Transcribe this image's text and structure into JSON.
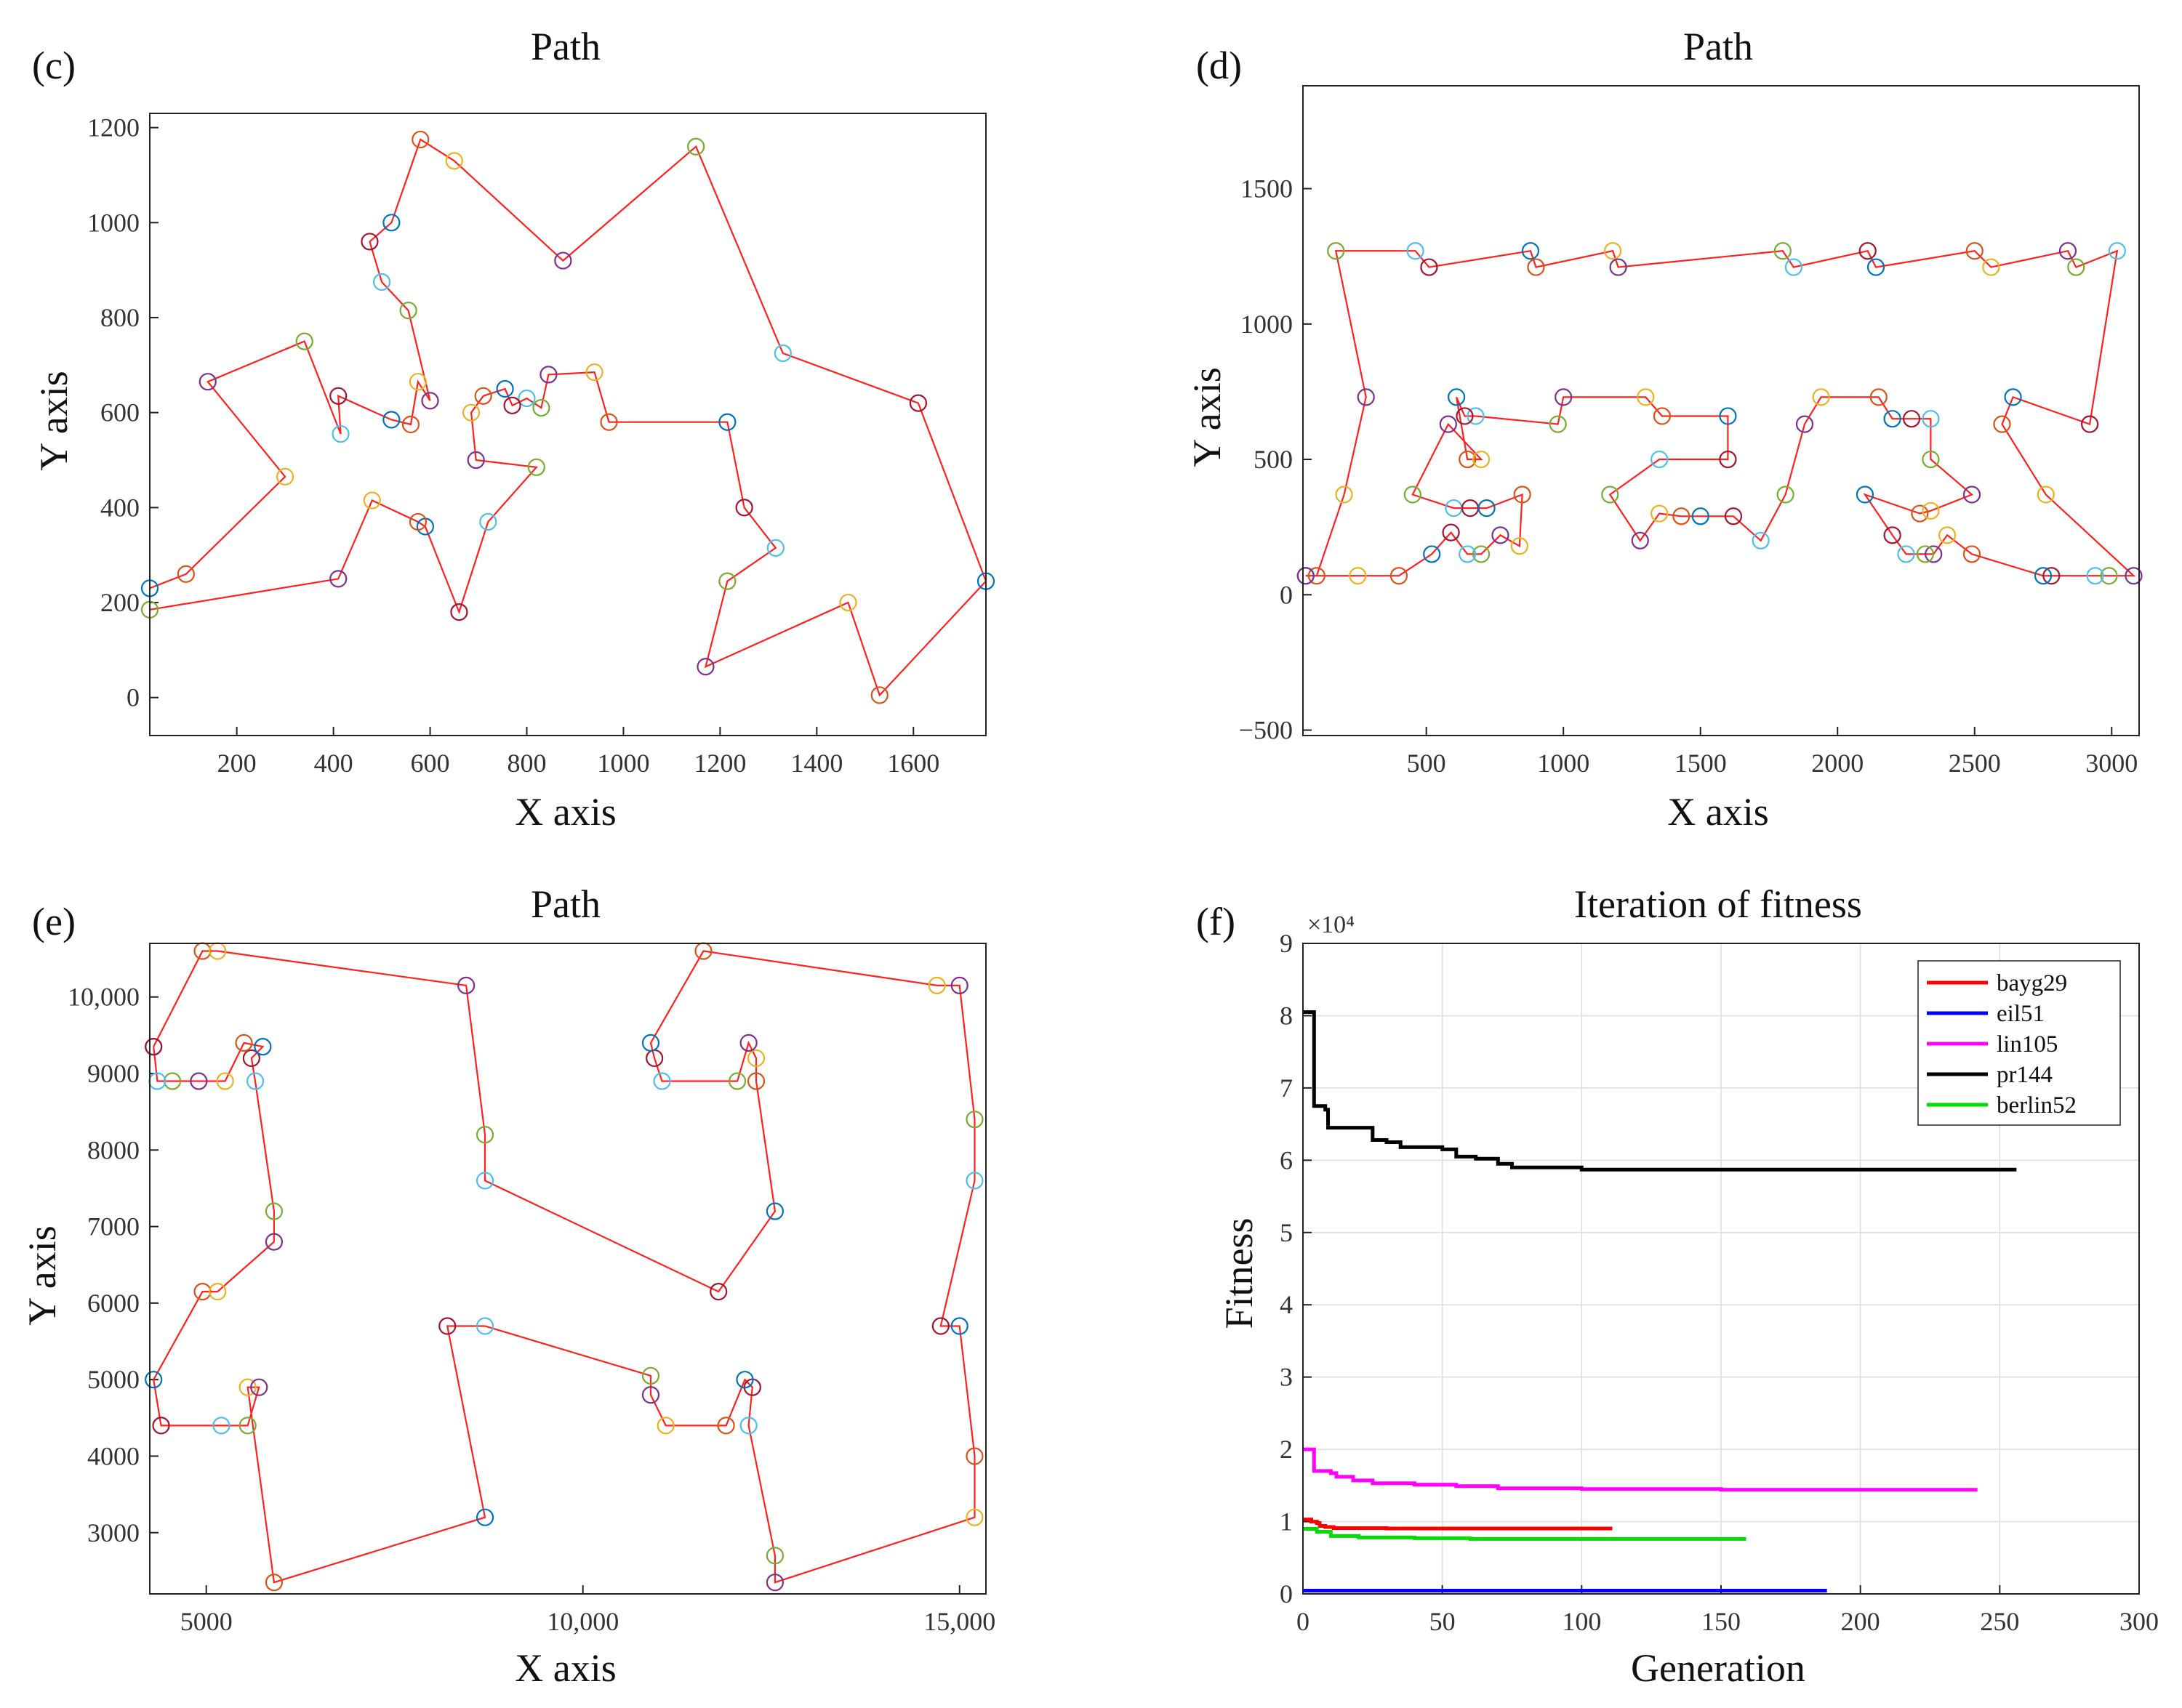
{
  "chart_data": [
    {
      "id": "c",
      "panel_label": "(c)",
      "type": "scatter",
      "title": "Path",
      "xlabel": "X axis",
      "ylabel": "Y axis",
      "xlim": [
        20,
        1750
      ],
      "ylim": [
        -80,
        1230
      ],
      "xticks": [
        200,
        400,
        600,
        800,
        1000,
        1200,
        1400,
        1600
      ],
      "xtick_labels": [
        "200",
        "400",
        "600",
        "800",
        "1000",
        "1200",
        "1400",
        "1600"
      ],
      "yticks": [
        0,
        200,
        400,
        600,
        800,
        1000,
        1200
      ],
      "ytick_labels": [
        "0",
        "200",
        "400",
        "600",
        "800",
        "1000",
        "1200"
      ],
      "path_color": "#ff2020",
      "path": [
        [
          20,
          230
        ],
        [
          95,
          260
        ],
        [
          300,
          465
        ],
        [
          140,
          665
        ],
        [
          340,
          750
        ],
        [
          415,
          555
        ],
        [
          410,
          635
        ],
        [
          520,
          585
        ],
        [
          560,
          575
        ],
        [
          575,
          665
        ],
        [
          600,
          625
        ],
        [
          555,
          815
        ],
        [
          500,
          875
        ],
        [
          475,
          960
        ],
        [
          520,
          1000
        ],
        [
          580,
          1175
        ],
        [
          650,
          1130
        ],
        [
          875,
          920
        ],
        [
          1150,
          1160
        ],
        [
          1330,
          725
        ],
        [
          1610,
          620
        ],
        [
          1750,
          245
        ],
        [
          1530,
          5
        ],
        [
          1465,
          200
        ],
        [
          1170,
          65
        ],
        [
          1215,
          245
        ],
        [
          1315,
          315
        ],
        [
          1250,
          400
        ],
        [
          1215,
          580
        ],
        [
          970,
          580
        ],
        [
          940,
          685
        ],
        [
          845,
          680
        ],
        [
          830,
          610
        ],
        [
          800,
          630
        ],
        [
          770,
          615
        ],
        [
          755,
          650
        ],
        [
          710,
          635
        ],
        [
          685,
          600
        ],
        [
          695,
          500
        ],
        [
          820,
          485
        ],
        [
          720,
          370
        ],
        [
          660,
          180
        ],
        [
          590,
          360
        ],
        [
          575,
          370
        ],
        [
          480,
          415
        ],
        [
          410,
          250
        ],
        [
          20,
          185
        ]
      ]
    },
    {
      "id": "d",
      "panel_label": "(d)",
      "type": "scatter",
      "title": "Path",
      "xlabel": "X axis",
      "ylabel": "Y axis",
      "xlim": [
        50,
        3100
      ],
      "ylim": [
        -520,
        1880
      ],
      "xticks": [
        500,
        1000,
        1500,
        2000,
        2500,
        3000
      ],
      "xtick_labels": [
        "500",
        "1000",
        "1500",
        "2000",
        "2500",
        "3000"
      ],
      "yticks": [
        -500,
        0,
        500,
        1000,
        1500
      ],
      "ytick_labels": [
        "−500",
        "0",
        "500",
        "1000",
        "1500"
      ],
      "path_color": "#ff2020",
      "path": [
        [
          60,
          70
        ],
        [
          100,
          70
        ],
        [
          200,
          370
        ],
        [
          280,
          730
        ],
        [
          170,
          1270
        ],
        [
          460,
          1270
        ],
        [
          510,
          1210
        ],
        [
          880,
          1270
        ],
        [
          900,
          1210
        ],
        [
          1180,
          1270
        ],
        [
          1200,
          1210
        ],
        [
          1800,
          1270
        ],
        [
          1840,
          1210
        ],
        [
          2110,
          1270
        ],
        [
          2140,
          1210
        ],
        [
          2500,
          1270
        ],
        [
          2560,
          1210
        ],
        [
          2840,
          1270
        ],
        [
          2870,
          1210
        ],
        [
          3020,
          1270
        ],
        [
          2920,
          630
        ],
        [
          2640,
          730
        ],
        [
          2600,
          630
        ],
        [
          2760,
          370
        ],
        [
          3080,
          70
        ],
        [
          2990,
          70
        ],
        [
          2940,
          70
        ],
        [
          2780,
          70
        ],
        [
          2750,
          70
        ],
        [
          2490,
          150
        ],
        [
          2400,
          220
        ],
        [
          2350,
          150
        ],
        [
          2320,
          150
        ],
        [
          2250,
          150
        ],
        [
          2200,
          220
        ],
        [
          2100,
          370
        ],
        [
          2300,
          300
        ],
        [
          2340,
          310
        ],
        [
          2490,
          370
        ],
        [
          2340,
          500
        ],
        [
          2340,
          650
        ],
        [
          2270,
          650
        ],
        [
          2200,
          650
        ],
        [
          2150,
          730
        ],
        [
          1940,
          730
        ],
        [
          1880,
          630
        ],
        [
          1810,
          370
        ],
        [
          1720,
          200
        ],
        [
          1620,
          290
        ],
        [
          1500,
          290
        ],
        [
          1430,
          290
        ],
        [
          1350,
          300
        ],
        [
          1280,
          200
        ],
        [
          1170,
          370
        ],
        [
          1350,
          500
        ],
        [
          1600,
          500
        ],
        [
          1600,
          660
        ],
        [
          1360,
          660
        ],
        [
          1300,
          730
        ],
        [
          1000,
          730
        ],
        [
          980,
          630
        ],
        [
          680,
          660
        ],
        [
          640,
          660
        ],
        [
          610,
          730
        ],
        [
          650,
          500
        ],
        [
          700,
          500
        ],
        [
          580,
          630
        ],
        [
          450,
          370
        ],
        [
          600,
          320
        ],
        [
          660,
          320
        ],
        [
          720,
          320
        ],
        [
          850,
          370
        ],
        [
          840,
          180
        ],
        [
          770,
          220
        ],
        [
          700,
          150
        ],
        [
          650,
          150
        ],
        [
          590,
          230
        ],
        [
          520,
          150
        ],
        [
          400,
          70
        ],
        [
          250,
          70
        ],
        [
          60,
          70
        ]
      ]
    },
    {
      "id": "e",
      "panel_label": "(e)",
      "type": "scatter",
      "title": "Path",
      "xlabel": "X axis",
      "ylabel": "Y axis",
      "xlim": [
        4250,
        15350
      ],
      "ylim": [
        2200,
        10700
      ],
      "xticks": [
        5000,
        10000,
        15000
      ],
      "xtick_labels": [
        "5000",
        "10,000",
        "15,000"
      ],
      "yticks": [
        3000,
        4000,
        5000,
        6000,
        7000,
        8000,
        9000,
        10000
      ],
      "ytick_labels": [
        "3000",
        "4000",
        "5000",
        "6000",
        "7000",
        "8000",
        "9000",
        "10,000"
      ],
      "path_color": "#ff2020",
      "path": [
        [
          4300,
          9350
        ],
        [
          4950,
          10600
        ],
        [
          5150,
          10600
        ],
        [
          8450,
          10150
        ],
        [
          8700,
          8200
        ],
        [
          8700,
          7600
        ],
        [
          11800,
          6150
        ],
        [
          12550,
          7200
        ],
        [
          12300,
          8900
        ],
        [
          12300,
          9200
        ],
        [
          12200,
          9400
        ],
        [
          12050,
          8900
        ],
        [
          11050,
          8900
        ],
        [
          10950,
          9200
        ],
        [
          10900,
          9400
        ],
        [
          11600,
          10600
        ],
        [
          14700,
          10150
        ],
        [
          15000,
          10150
        ],
        [
          15200,
          8400
        ],
        [
          15200,
          7600
        ],
        [
          14750,
          5700
        ],
        [
          15000,
          5700
        ],
        [
          15200,
          4000
        ],
        [
          15200,
          3200
        ],
        [
          12550,
          2350
        ],
        [
          12550,
          2700
        ],
        [
          12200,
          4400
        ],
        [
          12250,
          4900
        ],
        [
          12150,
          5000
        ],
        [
          11900,
          4400
        ],
        [
          11100,
          4400
        ],
        [
          10900,
          4800
        ],
        [
          10900,
          5050
        ],
        [
          8700,
          5700
        ],
        [
          8200,
          5700
        ],
        [
          8700,
          3200
        ],
        [
          5900,
          2350
        ],
        [
          5550,
          4900
        ],
        [
          5700,
          4900
        ],
        [
          5550,
          4400
        ],
        [
          5200,
          4400
        ],
        [
          4400,
          4400
        ],
        [
          4300,
          5000
        ],
        [
          4950,
          6150
        ],
        [
          5150,
          6150
        ],
        [
          5900,
          6800
        ],
        [
          5900,
          7200
        ],
        [
          5650,
          8900
        ],
        [
          5600,
          9200
        ],
        [
          5750,
          9350
        ],
        [
          5500,
          9400
        ],
        [
          5250,
          8900
        ],
        [
          4900,
          8900
        ],
        [
          4550,
          8900
        ],
        [
          4350,
          8900
        ],
        [
          4300,
          9350
        ]
      ]
    },
    {
      "id": "f",
      "panel_label": "(f)",
      "type": "line",
      "title": "Iteration of fitness",
      "xlabel": "Generation",
      "ylabel": "Fitness",
      "exponent_label": "×10⁴",
      "xlim": [
        0,
        300
      ],
      "ylim": [
        0,
        90000
      ],
      "grid": true,
      "legend_position": "top-right",
      "xticks": [
        0,
        50,
        100,
        150,
        200,
        250,
        300
      ],
      "xtick_labels": [
        "0",
        "50",
        "100",
        "150",
        "200",
        "250",
        "300"
      ],
      "yticks": [
        0,
        10000,
        20000,
        30000,
        40000,
        50000,
        60000,
        70000,
        80000,
        90000
      ],
      "ytick_labels": [
        "0",
        "1",
        "2",
        "3",
        "4",
        "5",
        "6",
        "7",
        "8",
        "9"
      ],
      "series": [
        {
          "name": "bayg29",
          "color": "#ff0000",
          "points": [
            [
              0,
              10300
            ],
            [
              2,
              10300
            ],
            [
              3,
              10000
            ],
            [
              5,
              9800
            ],
            [
              6,
              9400
            ],
            [
              8,
              9250
            ],
            [
              11,
              9100
            ],
            [
              20,
              9100
            ],
            [
              30,
              9050
            ],
            [
              111,
              9050
            ]
          ]
        },
        {
          "name": "eil51",
          "color": "#0000ff",
          "points": [
            [
              0,
              450
            ],
            [
              188,
              450
            ]
          ]
        },
        {
          "name": "lin105",
          "color": "#ff00ff",
          "points": [
            [
              0,
              20000
            ],
            [
              3,
              20000
            ],
            [
              4,
              17000
            ],
            [
              10,
              16700
            ],
            [
              12,
              16200
            ],
            [
              18,
              15700
            ],
            [
              25,
              15300
            ],
            [
              40,
              15100
            ],
            [
              55,
              14900
            ],
            [
              70,
              14600
            ],
            [
              100,
              14500
            ],
            [
              150,
              14400
            ],
            [
              242,
              14400
            ]
          ]
        },
        {
          "name": "pr144",
          "color": "#000000",
          "points": [
            [
              0,
              80500
            ],
            [
              3,
              80500
            ],
            [
              4,
              67500
            ],
            [
              8,
              67000
            ],
            [
              9,
              64500
            ],
            [
              25,
              62800
            ],
            [
              30,
              62500
            ],
            [
              35,
              61800
            ],
            [
              50,
              61500
            ],
            [
              55,
              60500
            ],
            [
              62,
              60200
            ],
            [
              70,
              59500
            ],
            [
              75,
              59000
            ],
            [
              100,
              58700
            ],
            [
              256,
              58700
            ]
          ]
        },
        {
          "name": "berlin52",
          "color": "#00dd00",
          "points": [
            [
              0,
              9000
            ],
            [
              5,
              8600
            ],
            [
              10,
              8000
            ],
            [
              20,
              7800
            ],
            [
              40,
              7700
            ],
            [
              60,
              7600
            ],
            [
              159,
              7600
            ]
          ]
        }
      ]
    }
  ]
}
